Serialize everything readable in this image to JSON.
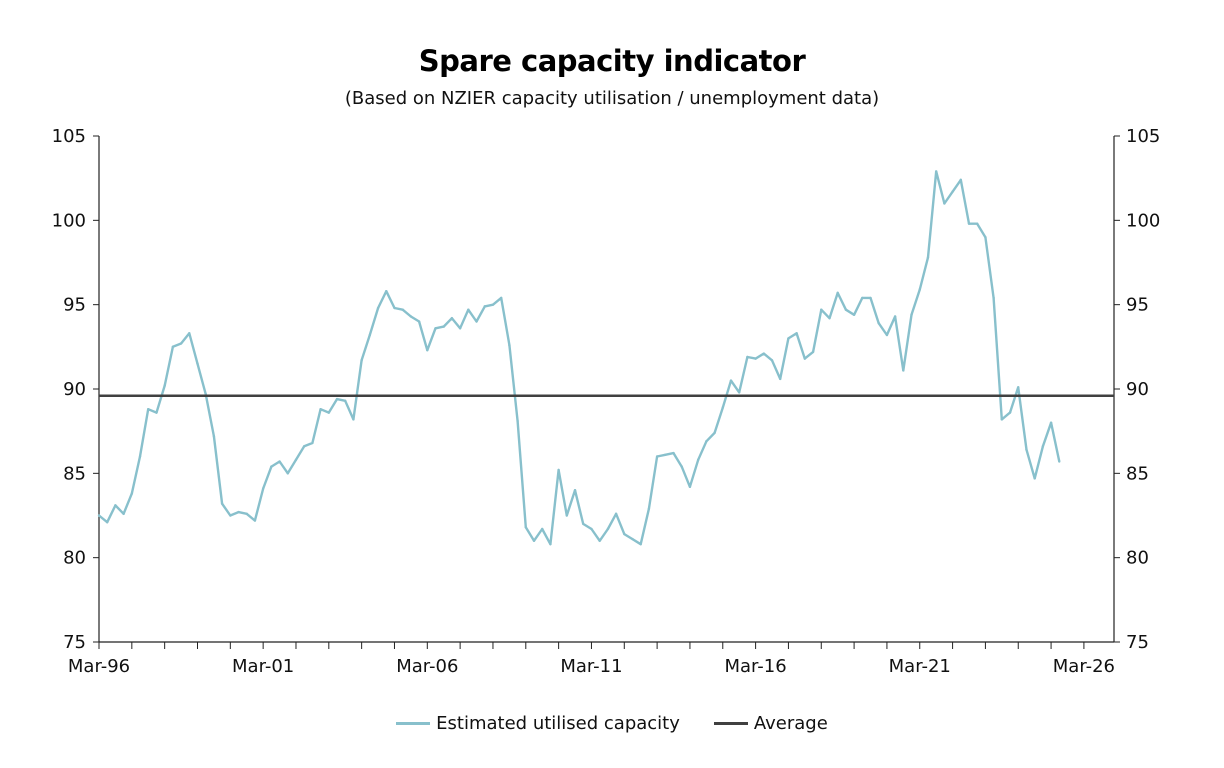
{
  "chart_data": {
    "type": "line",
    "title": "Spare capacity indicator",
    "subtitle": "(Based on NZIER capacity utilisation / unemployment data)",
    "xlabel": "",
    "ylabel": "",
    "ylim": [
      75,
      105
    ],
    "yticks": [
      75,
      80,
      85,
      90,
      95,
      100,
      105
    ],
    "xlim": [
      "1996-03",
      "2027-02"
    ],
    "xtick_labels": [
      "Mar-96",
      "Mar-01",
      "Mar-06",
      "Mar-11",
      "Mar-16",
      "Mar-21",
      "Mar-26"
    ],
    "xtick_dates": [
      "1996-03",
      "2001-03",
      "2006-03",
      "2011-03",
      "2016-03",
      "2021-03",
      "2026-03"
    ],
    "grid": false,
    "legend": "bottom",
    "frequency": "quarterly",
    "start": "1996-03",
    "series": [
      {
        "name": "Estimated utilised capacity",
        "color": "#88c0cc",
        "values": [
          82.5,
          82.1,
          83.1,
          82.6,
          83.8,
          86.0,
          88.8,
          88.6,
          90.2,
          92.5,
          92.7,
          93.3,
          91.5,
          89.7,
          87.2,
          83.2,
          82.5,
          82.7,
          82.6,
          82.2,
          84.1,
          85.4,
          85.7,
          85.0,
          85.8,
          86.6,
          86.8,
          88.8,
          88.6,
          89.4,
          89.3,
          88.2,
          91.7,
          93.2,
          94.8,
          95.8,
          94.8,
          94.7,
          94.3,
          94.0,
          92.3,
          93.6,
          93.7,
          94.2,
          93.6,
          94.7,
          94.0,
          94.9,
          95.0,
          95.4,
          92.6,
          88.1,
          81.8,
          81.0,
          81.7,
          80.8,
          85.2,
          82.5,
          84.0,
          82.0,
          81.7,
          81.0,
          81.7,
          82.6,
          81.4,
          81.1,
          80.8,
          82.9,
          86.0,
          86.1,
          86.2,
          85.4,
          84.2,
          85.8,
          86.9,
          87.4,
          88.9,
          90.5,
          89.8,
          91.9,
          91.8,
          92.1,
          91.7,
          90.6,
          93.0,
          93.3,
          91.8,
          92.2,
          94.7,
          94.2,
          95.7,
          94.7,
          94.4,
          95.4,
          95.4,
          93.9,
          93.2,
          94.3,
          91.1,
          94.4,
          95.9,
          97.8,
          102.9,
          101.0,
          101.7,
          102.4,
          99.8,
          99.8,
          99.0,
          95.4,
          88.2,
          88.6,
          90.1,
          86.4,
          84.7,
          86.6,
          88.0,
          85.7
        ]
      },
      {
        "name": "Average",
        "color": "#404040",
        "value": 89.6
      }
    ]
  }
}
